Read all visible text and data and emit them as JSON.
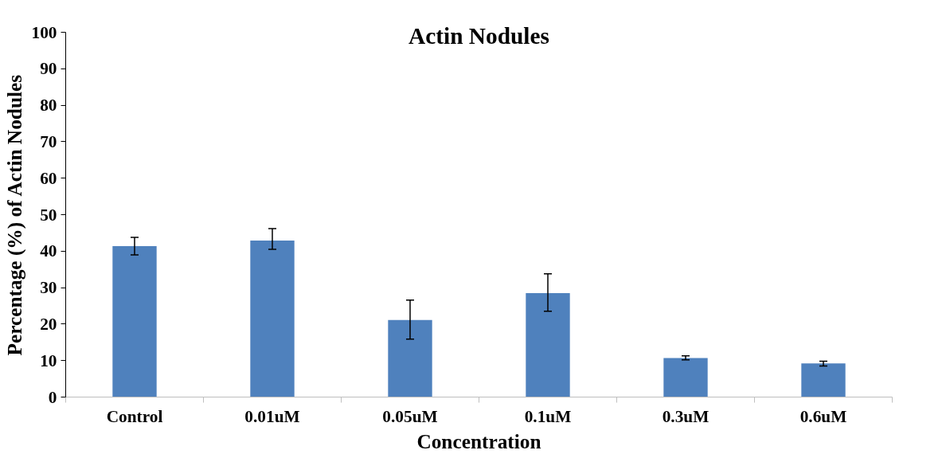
{
  "chart_data": {
    "type": "bar",
    "title": "Actin Nodules",
    "xlabel": "Concentration",
    "ylabel": "Percentage (%) of Actin Nodules",
    "categories": [
      "Control",
      "0.01uM",
      "0.05uM",
      "0.1uM",
      "0.3uM",
      "0.6uM"
    ],
    "values": [
      41.4,
      42.9,
      21.1,
      28.5,
      10.7,
      9.2
    ],
    "errors": [
      [
        39.0,
        43.8
      ],
      [
        40.5,
        46.2
      ],
      [
        15.9,
        26.6
      ],
      [
        23.5,
        33.8
      ],
      [
        10.2,
        11.3
      ],
      [
        8.5,
        9.8
      ]
    ],
    "color": "#4f81bd",
    "ylim": [
      0,
      100
    ],
    "yticks": [
      0,
      10,
      20,
      30,
      40,
      50,
      60,
      70,
      80,
      90,
      100
    ],
    "grid": false
  }
}
